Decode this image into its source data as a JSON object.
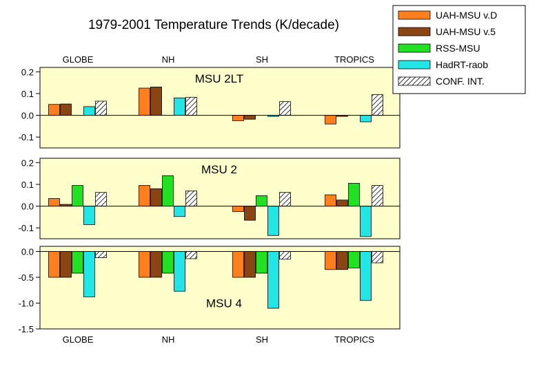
{
  "chart_data": {
    "type": "bar",
    "title": "1979-2001 Temperature Trends (K/decade)",
    "categories": [
      "GLOBE",
      "NH",
      "SH",
      "TROPICS"
    ],
    "legend": {
      "placement": "top-right",
      "entries": [
        {
          "label": "UAH-MSU v.D",
          "color": "#ff7f1e",
          "pattern": "solid"
        },
        {
          "label": "UAH-MSU v.5",
          "color": "#8b4513",
          "pattern": "solid"
        },
        {
          "label": "RSS-MSU",
          "color": "#22e022",
          "pattern": "solid"
        },
        {
          "label": "HadRT-raob",
          "color": "#22e6e6",
          "pattern": "solid"
        },
        {
          "label": "CONF. INT.",
          "color": "#ffffff",
          "pattern": "hatch"
        }
      ]
    },
    "panels": [
      {
        "label": "MSU 2LT",
        "ylim": [
          -0.15,
          0.22
        ],
        "yticks": [
          0.2,
          0.1,
          0.0,
          -0.1
        ],
        "tick_labels": [
          "0.2",
          "0.1",
          "0.0",
          "-0.1"
        ],
        "series": [
          {
            "name": "UAH-MSU v.D",
            "values": [
              0.05,
              0.125,
              -0.025,
              -0.04
            ]
          },
          {
            "name": "UAH-MSU v.5",
            "values": [
              0.052,
              0.13,
              -0.018,
              -0.005
            ]
          },
          {
            "name": "RSS-MSU",
            "values": [
              null,
              null,
              null,
              null
            ]
          },
          {
            "name": "HadRT-raob",
            "values": [
              0.04,
              0.08,
              -0.005,
              -0.03
            ]
          },
          {
            "name": "CONF. INT.",
            "values": [
              0.065,
              0.083,
              0.063,
              0.095
            ]
          }
        ]
      },
      {
        "label": "MSU 2",
        "ylim": [
          -0.15,
          0.22
        ],
        "yticks": [
          0.2,
          0.1,
          0.0,
          -0.1
        ],
        "tick_labels": [
          "0.2",
          "0.1",
          "0.0",
          "-0.1"
        ],
        "series": [
          {
            "name": "UAH-MSU v.D",
            "values": [
              0.035,
              0.095,
              -0.025,
              0.052
            ]
          },
          {
            "name": "UAH-MSU v.5",
            "values": [
              0.008,
              0.08,
              -0.065,
              0.028
            ]
          },
          {
            "name": "RSS-MSU",
            "values": [
              0.095,
              0.14,
              0.048,
              0.105
            ]
          },
          {
            "name": "HadRT-raob",
            "values": [
              -0.085,
              -0.048,
              -0.135,
              -0.14
            ]
          },
          {
            "name": "CONF. INT.",
            "values": [
              0.063,
              0.07,
              0.063,
              0.095
            ]
          }
        ]
      },
      {
        "label": "MSU 4",
        "ylim": [
          -1.5,
          0.1
        ],
        "yticks": [
          0.0,
          -0.5,
          -1.0,
          -1.5
        ],
        "tick_labels": [
          "0.0",
          "-0.5",
          "-1.0",
          "-1.5"
        ],
        "series": [
          {
            "name": "UAH-MSU v.D",
            "values": [
              -0.5,
              -0.5,
              -0.5,
              -0.35
            ]
          },
          {
            "name": "UAH-MSU v.5",
            "values": [
              -0.5,
              -0.5,
              -0.5,
              -0.35
            ]
          },
          {
            "name": "RSS-MSU",
            "values": [
              -0.42,
              -0.42,
              -0.42,
              -0.32
            ]
          },
          {
            "name": "HadRT-raob",
            "values": [
              -0.88,
              -0.77,
              -1.1,
              -0.95
            ]
          },
          {
            "name": "CONF. INT.",
            "values": [
              -0.12,
              -0.14,
              -0.15,
              -0.22
            ]
          }
        ]
      }
    ],
    "grid": false
  }
}
